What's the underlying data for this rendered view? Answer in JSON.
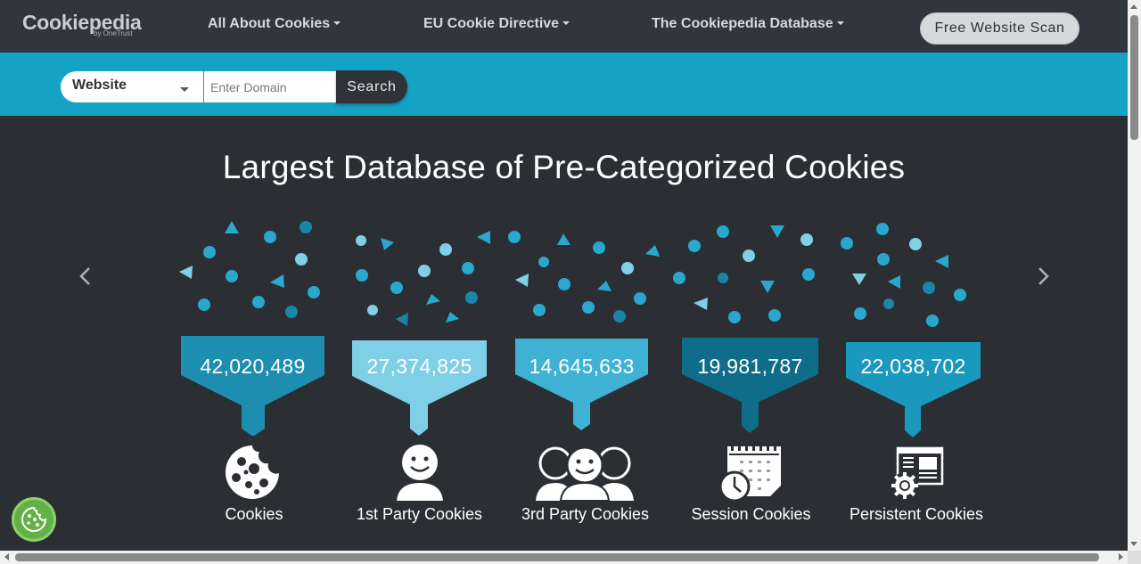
{
  "navbar": {
    "logo": {
      "name": "Cookiepedia",
      "sub": "by OneTrust"
    },
    "items": [
      {
        "label": "All About Cookies"
      },
      {
        "label": "EU Cookie Directive"
      },
      {
        "label": "The Cookiepedia Database"
      }
    ],
    "scan_button": "Free Website Scan"
  },
  "search": {
    "select_value": "Website",
    "input_placeholder": "Enter Domain",
    "button_label": "Search"
  },
  "hero": {
    "title": "Largest Database of Pre-Categorized Cookies"
  },
  "stats": [
    {
      "value": "42,020,489",
      "label": "Cookies",
      "icon": "cookie-icon",
      "color": "#1d8db0"
    },
    {
      "value": "27,374,825",
      "label": "1st Party Cookies",
      "icon": "single-person-icon",
      "color": "#7fcfe6"
    },
    {
      "value": "14,645,633",
      "label": "3rd Party Cookies",
      "icon": "group-people-icon",
      "color": "#3fb1d4"
    },
    {
      "value": "19,981,787",
      "label": "Session Cookies",
      "icon": "calendar-clock-icon",
      "color": "#0f6d8a"
    },
    {
      "value": "22,038,702",
      "label": "Persistent Cookies",
      "icon": "document-gear-icon",
      "color": "#1b98be"
    }
  ],
  "colors": {
    "navbar_bg": "#31363c",
    "search_band": "#14a2c5",
    "page_bg": "#2b2f33",
    "badge_green": "#62b047"
  }
}
